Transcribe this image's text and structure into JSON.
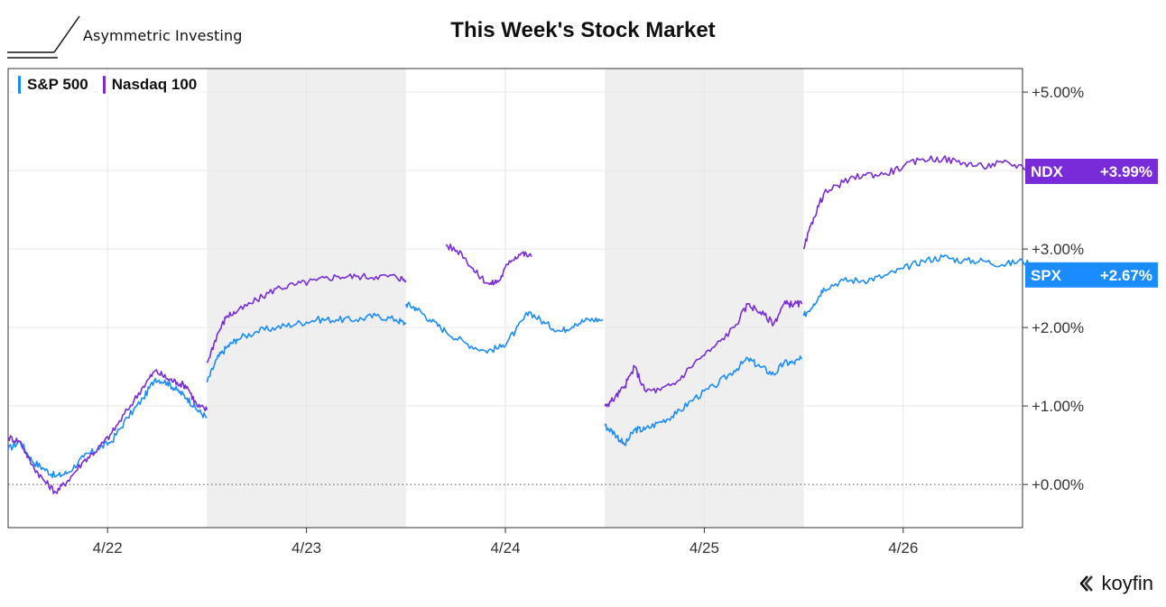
{
  "header": {
    "brand_name": "Asymmetric Investing",
    "title": "This Week's Stock Market"
  },
  "footer": {
    "logo_text": "koyfin",
    "logo_icon": "koyfin-chevron-icon"
  },
  "colors": {
    "spx": "#1a8cff",
    "ndx": "#7a2bd9",
    "shade": "#efefef",
    "grid": "#e6e6e6"
  },
  "chart_data": {
    "type": "line",
    "x_labels": [
      "4/22",
      "4/23",
      "4/24",
      "4/25",
      "4/26"
    ],
    "ylim": [
      -0.55,
      5.3
    ],
    "yticks": [
      {
        "value": 0,
        "label": "+0.00%"
      },
      {
        "value": 1,
        "label": "+1.00%"
      },
      {
        "value": 2,
        "label": "+2.00%"
      },
      {
        "value": 3,
        "label": "+3.00%"
      },
      {
        "value": 5,
        "label": "+5.00%"
      }
    ],
    "grid": true,
    "legend_position": "top-left",
    "series": [
      {
        "name": "S&P 500",
        "tag": "SPX",
        "last_label": "+2.67%",
        "color_key": "spx",
        "segments": [
          [
            [
              0.0,
              0.45
            ],
            [
              0.06,
              0.55
            ],
            [
              0.12,
              0.3
            ],
            [
              0.18,
              0.2
            ],
            [
              0.24,
              0.1
            ],
            [
              0.3,
              0.15
            ],
            [
              0.38,
              0.35
            ],
            [
              0.45,
              0.45
            ],
            [
              0.52,
              0.55
            ],
            [
              0.6,
              0.85
            ],
            [
              0.68,
              1.1
            ],
            [
              0.74,
              1.35
            ],
            [
              0.8,
              1.3
            ],
            [
              0.85,
              1.2
            ],
            [
              0.9,
              1.1
            ],
            [
              0.95,
              0.95
            ],
            [
              1.0,
              0.85
            ]
          ],
          [
            [
              1.0,
              1.3
            ],
            [
              1.05,
              1.6
            ],
            [
              1.1,
              1.75
            ],
            [
              1.15,
              1.85
            ],
            [
              1.25,
              1.95
            ],
            [
              1.35,
              2.0
            ],
            [
              1.45,
              2.05
            ],
            [
              1.55,
              2.1
            ],
            [
              1.65,
              2.1
            ],
            [
              1.75,
              2.1
            ],
            [
              1.85,
              2.15
            ],
            [
              1.95,
              2.1
            ],
            [
              2.0,
              2.05
            ]
          ],
          [
            [
              2.0,
              2.3
            ],
            [
              2.05,
              2.25
            ],
            [
              2.12,
              2.1
            ],
            [
              2.2,
              1.95
            ],
            [
              2.3,
              1.8
            ],
            [
              2.4,
              1.7
            ],
            [
              2.48,
              1.75
            ],
            [
              2.55,
              1.95
            ],
            [
              2.62,
              2.2
            ],
            [
              2.7,
              2.05
            ],
            [
              2.78,
              1.95
            ],
            [
              2.85,
              2.05
            ],
            [
              2.92,
              2.1
            ],
            [
              2.99,
              2.1
            ]
          ],
          [
            [
              3.0,
              0.75
            ],
            [
              3.05,
              0.65
            ],
            [
              3.1,
              0.5
            ],
            [
              3.15,
              0.7
            ],
            [
              3.2,
              0.7
            ],
            [
              3.28,
              0.8
            ],
            [
              3.36,
              0.9
            ],
            [
              3.45,
              1.1
            ],
            [
              3.55,
              1.25
            ],
            [
              3.65,
              1.45
            ],
            [
              3.72,
              1.6
            ],
            [
              3.78,
              1.5
            ],
            [
              3.85,
              1.4
            ],
            [
              3.9,
              1.55
            ],
            [
              3.95,
              1.55
            ],
            [
              3.99,
              1.6
            ]
          ],
          [
            [
              4.0,
              2.15
            ],
            [
              4.05,
              2.3
            ],
            [
              4.1,
              2.5
            ],
            [
              4.2,
              2.6
            ],
            [
              4.3,
              2.6
            ],
            [
              4.4,
              2.65
            ],
            [
              4.5,
              2.75
            ],
            [
              4.6,
              2.85
            ],
            [
              4.7,
              2.9
            ],
            [
              4.8,
              2.85
            ],
            [
              4.9,
              2.85
            ],
            [
              5.0,
              2.8
            ],
            [
              5.1,
              2.85
            ],
            [
              5.18,
              2.75
            ],
            [
              5.22,
              2.67
            ]
          ]
        ]
      },
      {
        "name": "Nasdaq 100",
        "tag": "NDX",
        "last_label": "+3.99%",
        "color_key": "ndx",
        "segments": [
          [
            [
              0.0,
              0.6
            ],
            [
              0.06,
              0.55
            ],
            [
              0.12,
              0.25
            ],
            [
              0.18,
              0.05
            ],
            [
              0.24,
              -0.1
            ],
            [
              0.3,
              0.05
            ],
            [
              0.38,
              0.3
            ],
            [
              0.45,
              0.45
            ],
            [
              0.52,
              0.65
            ],
            [
              0.6,
              0.95
            ],
            [
              0.68,
              1.25
            ],
            [
              0.74,
              1.45
            ],
            [
              0.8,
              1.35
            ],
            [
              0.85,
              1.3
            ],
            [
              0.9,
              1.25
            ],
            [
              0.95,
              1.0
            ],
            [
              1.0,
              0.95
            ]
          ],
          [
            [
              1.0,
              1.55
            ],
            [
              1.05,
              1.9
            ],
            [
              1.1,
              2.15
            ],
            [
              1.15,
              2.2
            ],
            [
              1.25,
              2.35
            ],
            [
              1.35,
              2.5
            ],
            [
              1.45,
              2.55
            ],
            [
              1.55,
              2.6
            ],
            [
              1.65,
              2.65
            ],
            [
              1.75,
              2.65
            ],
            [
              1.85,
              2.65
            ],
            [
              1.95,
              2.65
            ],
            [
              2.0,
              2.6
            ]
          ],
          [
            [
              2.2,
              3.05
            ],
            [
              2.28,
              2.95
            ],
            [
              2.35,
              2.7
            ],
            [
              2.42,
              2.55
            ],
            [
              2.47,
              2.6
            ],
            [
              2.52,
              2.85
            ],
            [
              2.58,
              2.95
            ],
            [
              2.63,
              2.9
            ]
          ],
          [
            [
              3.0,
              1.0
            ],
            [
              3.05,
              1.1
            ],
            [
              3.1,
              1.25
            ],
            [
              3.15,
              1.5
            ],
            [
              3.2,
              1.2
            ],
            [
              3.28,
              1.2
            ],
            [
              3.36,
              1.3
            ],
            [
              3.45,
              1.55
            ],
            [
              3.55,
              1.75
            ],
            [
              3.65,
              2.0
            ],
            [
              3.72,
              2.3
            ],
            [
              3.78,
              2.2
            ],
            [
              3.85,
              2.05
            ],
            [
              3.9,
              2.3
            ],
            [
              3.95,
              2.3
            ],
            [
              3.99,
              2.3
            ]
          ],
          [
            [
              4.0,
              3.0
            ],
            [
              4.05,
              3.4
            ],
            [
              4.1,
              3.7
            ],
            [
              4.2,
              3.85
            ],
            [
              4.3,
              3.95
            ],
            [
              4.4,
              3.95
            ],
            [
              4.5,
              4.05
            ],
            [
              4.6,
              4.15
            ],
            [
              4.7,
              4.15
            ],
            [
              4.8,
              4.1
            ],
            [
              4.9,
              4.05
            ],
            [
              5.0,
              4.1
            ],
            [
              5.1,
              4.05
            ],
            [
              5.18,
              4.0
            ],
            [
              5.22,
              3.99
            ]
          ]
        ]
      }
    ]
  }
}
